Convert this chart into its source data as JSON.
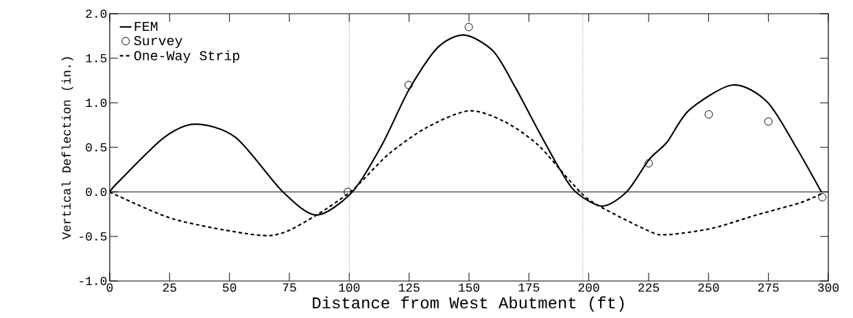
{
  "chart_data": {
    "type": "line",
    "xlabel": "Distance from West Abutment (ft)",
    "ylabel": "Vertical Deflection (in.)",
    "xlim": [
      0,
      300
    ],
    "ylim": [
      -1,
      2
    ],
    "xticks": [
      0,
      25,
      50,
      75,
      100,
      125,
      150,
      175,
      200,
      225,
      250,
      275,
      300
    ],
    "yticks": [
      {
        "value": -1,
        "label": "-1.0"
      },
      {
        "value": -0.5,
        "label": "-0.5"
      },
      {
        "value": 0,
        "label": "0.0"
      },
      {
        "value": 0.5,
        "label": "0.5"
      },
      {
        "value": 1,
        "label": "1.0"
      },
      {
        "value": 1.5,
        "label": "1.5"
      },
      {
        "value": 2,
        "label": "2.0"
      }
    ],
    "grid": false,
    "legend": "top left",
    "ref_lines": [
      {
        "axis": "y",
        "value": 0,
        "color": "#000000",
        "line_style": "solid"
      },
      {
        "axis": "x",
        "value": 100,
        "color": "#555555",
        "line_style": "dotted"
      },
      {
        "axis": "x",
        "value": 197.5,
        "color": "#555555",
        "line_style": "dotted"
      }
    ],
    "series": [
      {
        "name": "FEM",
        "color": "#000000",
        "line_style": "solid",
        "marker": "none",
        "x": [
          0,
          3.9,
          22.7,
          35.8,
          52.6,
          72.3,
          86.3,
          101.3,
          113.7,
          125,
          136.9,
          148,
          160.1,
          169.4,
          178.7,
          188,
          194.5,
          205.6,
          215.8,
          225.1,
          232.7,
          242,
          260.1,
          274.5,
          286.6,
          297.1
        ],
        "values": [
          0,
          0.12,
          0.61,
          0.76,
          0.61,
          0,
          -0.26,
          0,
          0.53,
          1.15,
          1.62,
          1.76,
          1.58,
          1.17,
          0.7,
          0.25,
          0,
          -0.16,
          0,
          0.36,
          0.56,
          0.92,
          1.2,
          1.01,
          0.5,
          0
        ]
      },
      {
        "name": "Survey",
        "type": "scatter",
        "color": "#000000",
        "marker": "circle",
        "x": [
          99.4,
          124.8,
          149.9,
          225,
          250.1,
          275,
          297.5
        ],
        "values": [
          0,
          1.2,
          1.85,
          0.32,
          0.87,
          0.79,
          -0.06
        ]
      },
      {
        "name": "One-Way Strip",
        "color": "#000000",
        "line_style": "dashed",
        "marker": "none",
        "x": [
          0,
          3.9,
          27.3,
          60.1,
          72.3,
          86.3,
          101.3,
          116.3,
          132.2,
          149.9,
          164.7,
          178.7,
          192.6,
          201.9,
          225.1,
          232.7,
          251.3,
          269.9,
          288.5,
          297.1
        ],
        "values": [
          0,
          -0.05,
          -0.31,
          -0.48,
          -0.46,
          -0.26,
          0.02,
          0.42,
          0.72,
          0.91,
          0.79,
          0.53,
          0.11,
          -0.12,
          -0.44,
          -0.48,
          -0.41,
          -0.26,
          -0.12,
          -0.02
        ]
      }
    ]
  }
}
